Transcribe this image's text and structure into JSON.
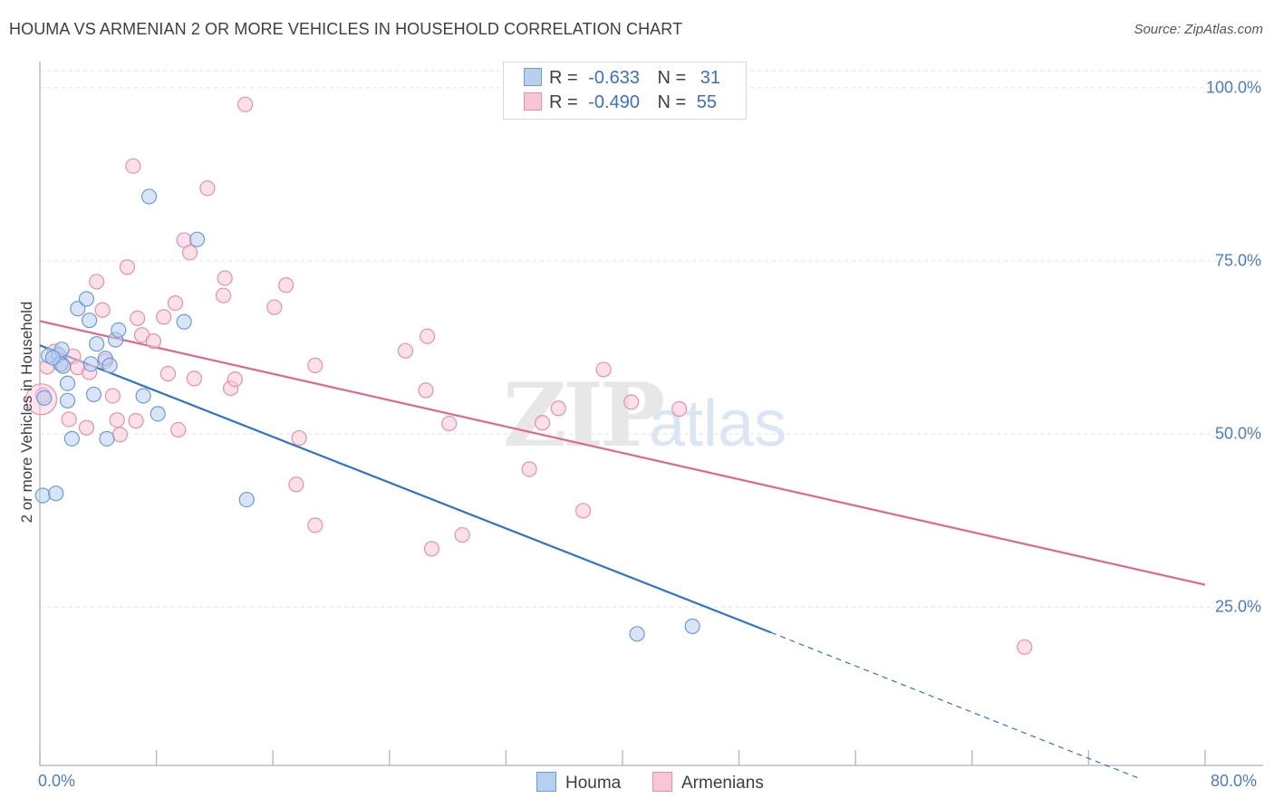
{
  "header": {
    "title": "HOUMA VS ARMENIAN 2 OR MORE VEHICLES IN HOUSEHOLD CORRELATION CHART",
    "source": "Source: ZipAtlas.com"
  },
  "legend_top": {
    "rows": [
      {
        "r_label": "R =",
        "r_value": "-0.633",
        "n_label": "N =",
        "n_value": "31"
      },
      {
        "r_label": "R =",
        "r_value": "-0.490",
        "n_label": "N =",
        "n_value": "55"
      }
    ]
  },
  "legend_bottom": {
    "items": [
      "Houma",
      "Armenians"
    ]
  },
  "colors": {
    "houma_fill": "#b8d0f0",
    "houma_stroke": "#6f9ad8",
    "houma_line": "#2f73d0",
    "armenian_fill": "#f8c6d6",
    "armenian_stroke": "#e690ad",
    "armenian_line": "#e0668f",
    "tick_label": "#4a7cc8",
    "grid": "#e2e2e2"
  },
  "chart_data": {
    "type": "scatter",
    "title": "HOUMA VS ARMENIAN 2 OR MORE VEHICLES IN HOUSEHOLD CORRELATION CHART",
    "xlabel": "",
    "ylabel": "2 or more Vehicles in Household",
    "xlim": [
      0,
      80
    ],
    "ylim": [
      0,
      105
    ],
    "x_tick_labels": [
      "0.0%",
      "80.0%"
    ],
    "y_ticks": [
      25,
      50,
      75,
      100
    ],
    "y_tick_labels": [
      "25.0%",
      "50.0%",
      "75.0%",
      "100.0%"
    ],
    "grid": "horizontal dashed",
    "legend_position": "top-center",
    "series": [
      {
        "name": "Houma",
        "r": -0.633,
        "n": 31,
        "points": [
          [
            0.2,
            41.1
          ],
          [
            1.1,
            41.4
          ],
          [
            0.3,
            55.2
          ],
          [
            0.6,
            61.3
          ],
          [
            1.3,
            61.4
          ],
          [
            1.5,
            62.2
          ],
          [
            1.4,
            60.1
          ],
          [
            1.6,
            59.8
          ],
          [
            1.9,
            57.3
          ],
          [
            1.9,
            54.8
          ],
          [
            2.2,
            49.3
          ],
          [
            2.6,
            68.1
          ],
          [
            3.2,
            69.5
          ],
          [
            3.4,
            66.4
          ],
          [
            3.5,
            60.1
          ],
          [
            3.7,
            55.7
          ],
          [
            3.9,
            63.0
          ],
          [
            4.5,
            60.9
          ],
          [
            4.6,
            49.3
          ],
          [
            4.8,
            59.9
          ],
          [
            5.2,
            63.6
          ],
          [
            5.4,
            65.0
          ],
          [
            7.1,
            55.5
          ],
          [
            7.5,
            84.3
          ],
          [
            8.1,
            52.9
          ],
          [
            9.9,
            66.2
          ],
          [
            10.8,
            78.1
          ],
          [
            14.2,
            40.5
          ],
          [
            41.0,
            21.1
          ],
          [
            44.8,
            22.2
          ],
          [
            0.9,
            61.0
          ]
        ],
        "trendline": {
          "x": [
            0,
            50.2
          ],
          "y": [
            62.8,
            21.3
          ],
          "dashed_extension": {
            "x": [
              50.2,
              75.5
            ],
            "y": [
              21.3,
              0.2
            ]
          }
        }
      },
      {
        "name": "Armenians",
        "r": -0.49,
        "n": 55,
        "points": [
          [
            0.2,
            55.6
          ],
          [
            0.5,
            59.7
          ],
          [
            1.0,
            61.9
          ],
          [
            1.5,
            60.1
          ],
          [
            2.0,
            52.1
          ],
          [
            2.3,
            61.2
          ],
          [
            2.6,
            59.6
          ],
          [
            3.2,
            50.9
          ],
          [
            3.4,
            58.9
          ],
          [
            3.9,
            72.0
          ],
          [
            4.3,
            67.9
          ],
          [
            4.5,
            60.5
          ],
          [
            5.0,
            55.5
          ],
          [
            5.3,
            52.0
          ],
          [
            5.5,
            49.9
          ],
          [
            6.0,
            74.1
          ],
          [
            6.4,
            88.7
          ],
          [
            6.6,
            51.9
          ],
          [
            6.7,
            66.7
          ],
          [
            7.0,
            64.3
          ],
          [
            7.8,
            63.4
          ],
          [
            8.5,
            66.9
          ],
          [
            8.8,
            58.7
          ],
          [
            9.3,
            68.9
          ],
          [
            9.5,
            50.6
          ],
          [
            9.9,
            78.0
          ],
          [
            10.3,
            76.2
          ],
          [
            10.6,
            58.0
          ],
          [
            11.5,
            85.5
          ],
          [
            12.6,
            70.0
          ],
          [
            12.7,
            72.5
          ],
          [
            13.1,
            56.6
          ],
          [
            13.4,
            57.9
          ],
          [
            14.1,
            97.6
          ],
          [
            16.1,
            68.3
          ],
          [
            16.9,
            71.5
          ],
          [
            17.6,
            42.7
          ],
          [
            17.8,
            49.4
          ],
          [
            18.9,
            36.8
          ],
          [
            18.9,
            59.9
          ],
          [
            25.1,
            62.0
          ],
          [
            26.5,
            56.3
          ],
          [
            26.6,
            64.1
          ],
          [
            26.9,
            33.4
          ],
          [
            28.1,
            51.5
          ],
          [
            29.0,
            35.4
          ],
          [
            33.6,
            44.9
          ],
          [
            34.5,
            51.6
          ],
          [
            35.6,
            53.7
          ],
          [
            37.3,
            38.9
          ],
          [
            38.7,
            59.3
          ],
          [
            40.6,
            54.6
          ],
          [
            43.9,
            53.6
          ],
          [
            67.6,
            19.2
          ],
          [
            0.1,
            55.0
          ]
        ],
        "trendline": {
          "x": [
            0,
            80
          ],
          "y": [
            66.3,
            28.2
          ]
        }
      }
    ],
    "watermark": "ZIPatlas"
  }
}
